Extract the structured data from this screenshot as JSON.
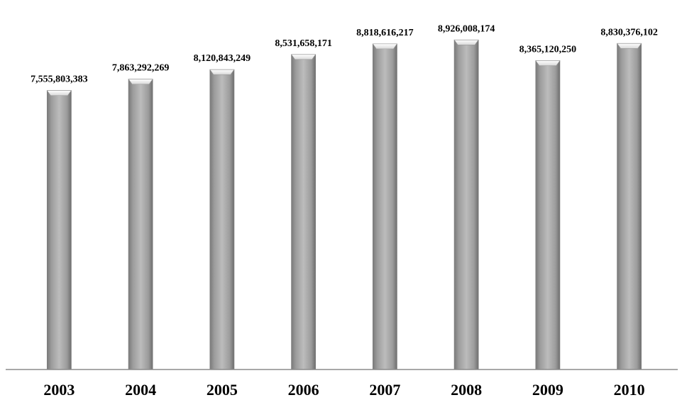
{
  "chart_data": {
    "type": "bar",
    "title": "",
    "xlabel": "",
    "ylabel": "",
    "categories": [
      "2003",
      "2004",
      "2005",
      "2006",
      "2007",
      "2008",
      "2009",
      "2010"
    ],
    "values": [
      7555803383,
      7863292269,
      8120843249,
      8531658171,
      8818616217,
      8926008174,
      8365120250,
      8830376102
    ],
    "value_labels": [
      "7,555,803,383",
      "7,863,292,269",
      "8,120,843,249",
      "8,531,658,171",
      "8,818,616,217",
      "8,926,008,174",
      "8,365,120,250",
      "8,830,376,102"
    ],
    "ylim": [
      0,
      9700000000
    ],
    "grid": false,
    "legend": "none",
    "colors": {
      "bar": "#a6a6a6",
      "bar_edge": "#7f7f7f",
      "axis": "#8c8c8c",
      "text": "#000000"
    }
  }
}
